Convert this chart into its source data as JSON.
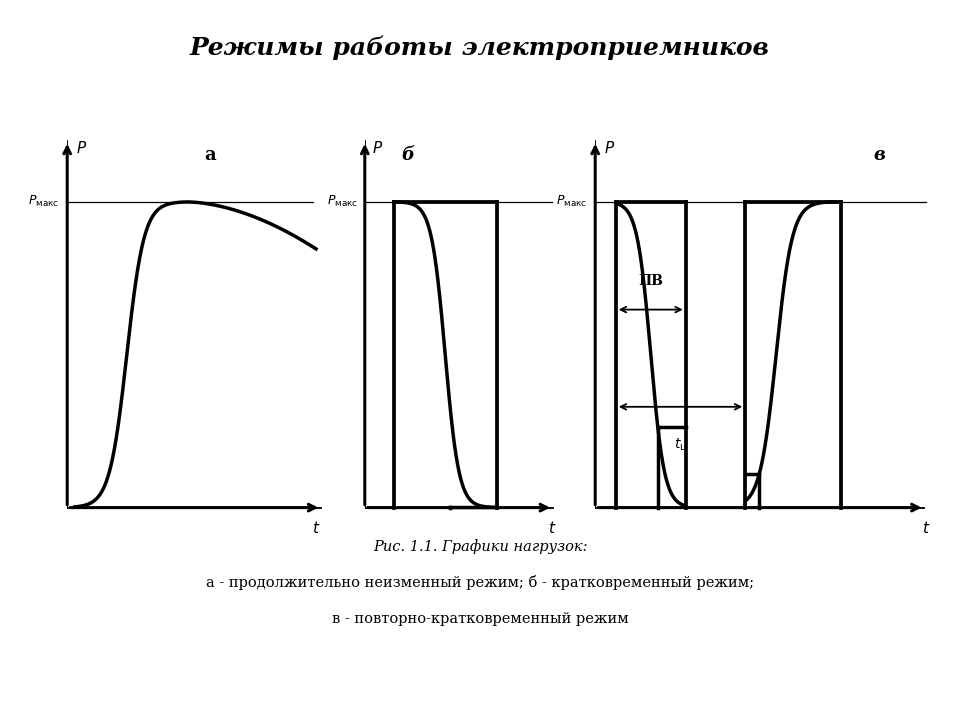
{
  "title": "Режимы работы электроприемников",
  "title_fontsize": 18,
  "caption_line1": "Рис. 1.1. Графики нагрузок:",
  "caption_line2": "а - продолжительно неизменный режим; б - кратковременный режим;",
  "caption_line3": "в - повторно-кратковременный режим",
  "label_a": "а",
  "label_b": "б",
  "label_v": "в",
  "label_PB": "ПВ",
  "label_tc": "t_ц",
  "background_color": "#ffffff",
  "line_color": "#000000",
  "line_width": 2.2
}
